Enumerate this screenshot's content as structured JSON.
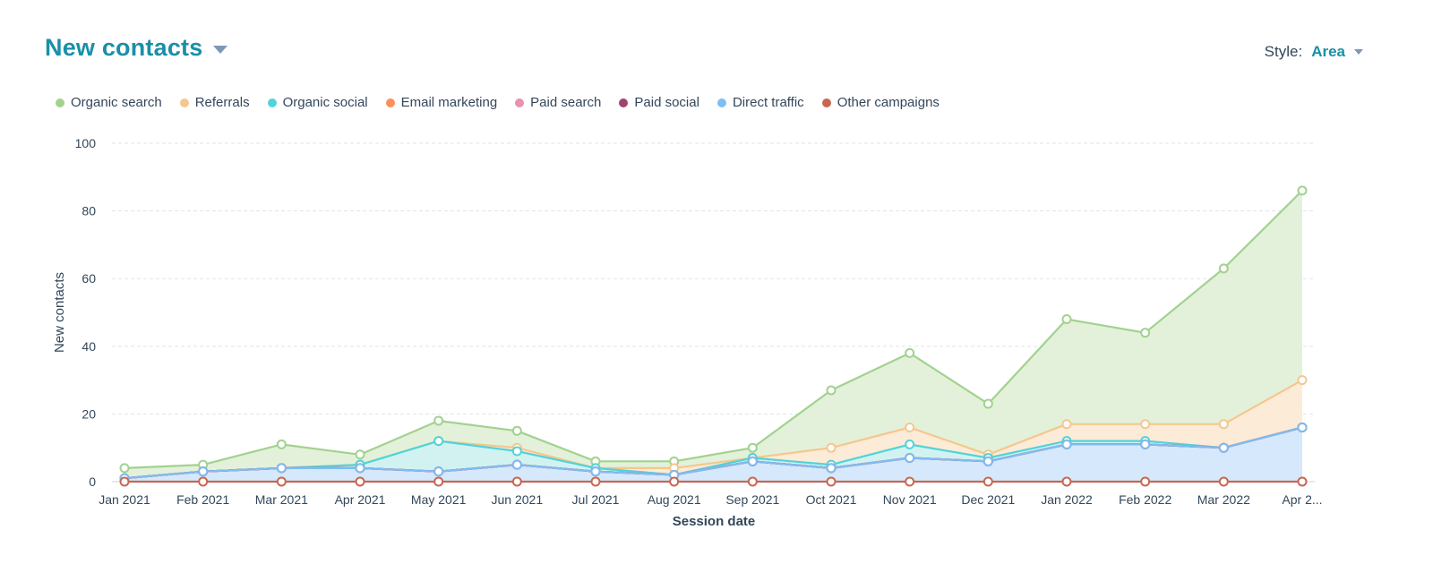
{
  "header": {
    "title": "New contacts"
  },
  "style_selector": {
    "label": "Style:",
    "value": "Area"
  },
  "chart_data": {
    "type": "area",
    "title": "New contacts",
    "xlabel": "Session date",
    "ylabel": "New contacts",
    "ylim": [
      0,
      100
    ],
    "yticks": [
      0,
      20,
      40,
      60,
      80,
      100
    ],
    "categories": [
      "Jan 2021",
      "Feb 2021",
      "Mar 2021",
      "Apr 2021",
      "May 2021",
      "Jun 2021",
      "Jul 2021",
      "Aug 2021",
      "Sep 2021",
      "Oct 2021",
      "Nov 2021",
      "Dec 2021",
      "Jan 2022",
      "Feb 2022",
      "Mar 2022",
      "Apr 2..."
    ],
    "legend_position": "top-left",
    "stacked_display_values": true,
    "series": [
      {
        "name": "Organic search",
        "color": "#a2d28f",
        "fill": "#e3f1da",
        "values": [
          4,
          5,
          11,
          8,
          18,
          15,
          6,
          6,
          10,
          27,
          38,
          23,
          48,
          44,
          63,
          86
        ]
      },
      {
        "name": "Referrals",
        "color": "#f5c78e",
        "fill": "#fcebd7",
        "values": [
          1,
          3,
          4,
          5,
          12,
          10,
          4,
          4,
          7,
          10,
          16,
          8,
          17,
          17,
          17,
          30
        ]
      },
      {
        "name": "Organic social",
        "color": "#51d3d9",
        "fill": "#d2f2f2",
        "values": [
          1,
          3,
          4,
          5,
          12,
          9,
          4,
          2,
          7,
          5,
          11,
          7,
          12,
          12,
          10,
          16
        ]
      },
      {
        "name": "Email marketing",
        "color": "#ff8f59",
        "fill": "#ffe1d3",
        "values": [
          1,
          3,
          4,
          4,
          3,
          5,
          3,
          2,
          6,
          4,
          7,
          6,
          11,
          11,
          10,
          16
        ]
      },
      {
        "name": "Paid search",
        "color": "#ea90b1",
        "fill": "#fadbe6",
        "values": [
          1,
          3,
          4,
          4,
          3,
          5,
          3,
          2,
          6,
          4,
          7,
          6,
          11,
          11,
          10,
          16
        ]
      },
      {
        "name": "Paid social",
        "color": "#a2426e",
        "fill": "#e8cdd9",
        "values": [
          1,
          3,
          4,
          4,
          3,
          5,
          3,
          2,
          6,
          4,
          7,
          6,
          11,
          11,
          10,
          16
        ]
      },
      {
        "name": "Direct traffic",
        "color": "#7fbdf3",
        "fill": "#d6e8fb",
        "values": [
          1,
          3,
          4,
          4,
          3,
          5,
          3,
          2,
          6,
          4,
          7,
          6,
          11,
          11,
          10,
          16
        ]
      },
      {
        "name": "Other campaigns",
        "color": "#c9664f",
        "fill": "#f1d8d2",
        "values": [
          0,
          0,
          0,
          0,
          0,
          0,
          0,
          0,
          0,
          0,
          0,
          0,
          0,
          0,
          0,
          0
        ]
      }
    ]
  }
}
